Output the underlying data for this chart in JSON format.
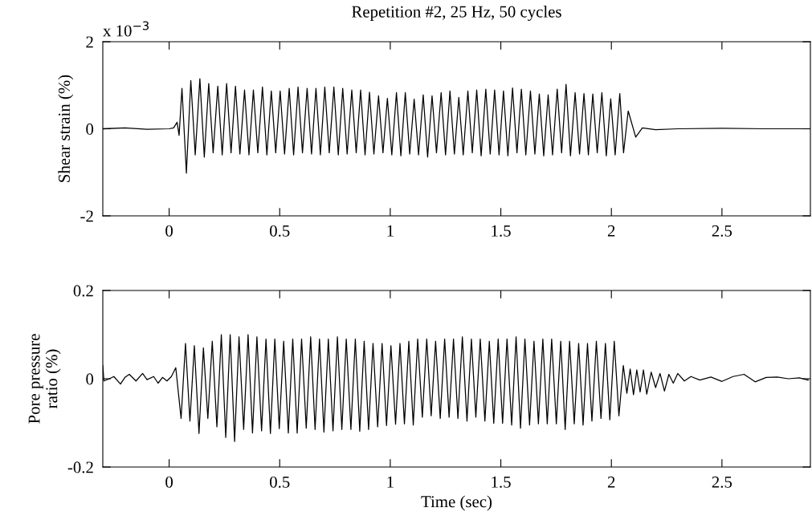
{
  "chart_data": [
    {
      "type": "line",
      "title": "Repetition #2, 25 Hz, 50 cycles",
      "ylabel": "Shear strain (%)",
      "annotations": [
        "x 10$^{−3}$"
      ],
      "grid": false,
      "marker": "none",
      "line_style": "solid",
      "xlim": [
        -0.3,
        2.9
      ],
      "xticks": [
        0,
        0.5,
        1,
        1.5,
        2,
        2.5
      ],
      "ylim": [
        -2,
        2
      ],
      "yticks": [
        -2,
        0,
        2
      ],
      "series": [
        {
          "color": "#000000",
          "x": [
            -0.3,
            -0.2,
            -0.1,
            0.0,
            0.02,
            0.036,
            0.045,
            0.058,
            0.078,
            0.098,
            0.118,
            0.139,
            0.159,
            0.179,
            0.199,
            0.22,
            0.24,
            0.26,
            0.28,
            0.3,
            0.32,
            0.341,
            0.361,
            0.381,
            0.401,
            0.422,
            0.442,
            0.462,
            0.482,
            0.502,
            0.522,
            0.543,
            0.563,
            0.583,
            0.603,
            0.624,
            0.644,
            0.664,
            0.684,
            0.704,
            0.724,
            0.745,
            0.765,
            0.785,
            0.805,
            0.826,
            0.846,
            0.866,
            0.886,
            0.906,
            0.926,
            0.947,
            0.967,
            0.987,
            1.007,
            1.028,
            1.048,
            1.068,
            1.088,
            1.108,
            1.128,
            1.149,
            1.169,
            1.189,
            1.209,
            1.23,
            1.25,
            1.27,
            1.29,
            1.31,
            1.33,
            1.351,
            1.371,
            1.391,
            1.411,
            1.432,
            1.452,
            1.472,
            1.492,
            1.512,
            1.532,
            1.553,
            1.573,
            1.593,
            1.613,
            1.634,
            1.654,
            1.674,
            1.694,
            1.714,
            1.734,
            1.755,
            1.775,
            1.795,
            1.815,
            1.836,
            1.856,
            1.876,
            1.896,
            1.916,
            1.936,
            1.957,
            1.977,
            1.997,
            2.017,
            2.038,
            2.055,
            2.076,
            2.11,
            2.14,
            2.2,
            2.3,
            2.5,
            2.7,
            2.9
          ],
          "values": [
            0,
            0.02,
            -0.01,
            0,
            0.02,
            0.15,
            -0.15,
            0.93,
            -1.02,
            1.11,
            -0.6,
            1.15,
            -0.65,
            1.04,
            -0.55,
            0.98,
            -0.6,
            1.04,
            -0.55,
            0.98,
            -0.58,
            0.89,
            -0.6,
            0.89,
            -0.55,
            0.96,
            -0.6,
            0.87,
            -0.55,
            0.87,
            -0.58,
            0.93,
            -0.6,
            0.96,
            -0.55,
            0.93,
            -0.58,
            0.93,
            -0.6,
            0.96,
            -0.55,
            0.96,
            -0.6,
            0.93,
            -0.58,
            0.89,
            -0.55,
            0.89,
            -0.6,
            0.84,
            -0.58,
            0.76,
            -0.55,
            0.7,
            -0.6,
            0.83,
            -0.62,
            0.83,
            -0.58,
            0.68,
            -0.6,
            0.78,
            -0.65,
            0.76,
            -0.55,
            0.83,
            -0.6,
            0.87,
            -0.58,
            0.72,
            -0.6,
            0.87,
            -0.55,
            0.89,
            -0.62,
            0.91,
            -0.58,
            0.89,
            -0.6,
            0.87,
            -0.62,
            0.94,
            -0.55,
            0.91,
            -0.6,
            0.87,
            -0.58,
            0.8,
            -0.62,
            0.78,
            -0.6,
            0.91,
            -0.55,
            1.02,
            -0.62,
            0.83,
            -0.58,
            0.81,
            -0.6,
            0.8,
            -0.55,
            0.83,
            -0.62,
            0.69,
            -0.6,
            0.81,
            -0.55,
            0.41,
            -0.19,
            0.02,
            -0.02,
            0,
            0.01,
            0,
            0
          ]
        }
      ]
    },
    {
      "type": "line",
      "xlabel": "Time (sec)",
      "ylabel": "Pore pressure\nratio (%)",
      "grid": false,
      "marker": "none",
      "line_style": "solid",
      "xlim": [
        -0.3,
        2.9
      ],
      "xticks": [
        0,
        0.5,
        1,
        1.5,
        2,
        2.5
      ],
      "ylim": [
        -0.2,
        0.2
      ],
      "yticks": [
        -0.2,
        0,
        0.2
      ],
      "series": [
        {
          "color": "#000000",
          "x": [
            -0.3,
            -0.295,
            -0.27,
            -0.25,
            -0.22,
            -0.2,
            -0.18,
            -0.15,
            -0.12,
            -0.1,
            -0.07,
            -0.05,
            -0.03,
            -0.01,
            0.01,
            0.03,
            0.054,
            0.074,
            0.094,
            0.114,
            0.135,
            0.155,
            0.175,
            0.195,
            0.216,
            0.236,
            0.256,
            0.276,
            0.296,
            0.316,
            0.337,
            0.357,
            0.377,
            0.397,
            0.418,
            0.438,
            0.458,
            0.478,
            0.498,
            0.518,
            0.539,
            0.559,
            0.579,
            0.599,
            0.62,
            0.64,
            0.66,
            0.68,
            0.7,
            0.72,
            0.741,
            0.761,
            0.781,
            0.801,
            0.822,
            0.842,
            0.862,
            0.882,
            0.902,
            0.922,
            0.943,
            0.963,
            0.983,
            1.003,
            1.024,
            1.044,
            1.064,
            1.084,
            1.104,
            1.124,
            1.145,
            1.165,
            1.185,
            1.205,
            1.226,
            1.246,
            1.266,
            1.286,
            1.306,
            1.326,
            1.347,
            1.367,
            1.387,
            1.407,
            1.428,
            1.448,
            1.468,
            1.488,
            1.508,
            1.528,
            1.549,
            1.569,
            1.589,
            1.609,
            1.63,
            1.65,
            1.67,
            1.69,
            1.71,
            1.73,
            1.751,
            1.771,
            1.791,
            1.811,
            1.832,
            1.852,
            1.872,
            1.892,
            1.912,
            1.932,
            1.953,
            1.973,
            1.993,
            2.013,
            2.034,
            2.054,
            2.07,
            2.085,
            2.1,
            2.115,
            2.13,
            2.145,
            2.16,
            2.18,
            2.2,
            2.22,
            2.24,
            2.26,
            2.28,
            2.3,
            2.33,
            2.36,
            2.4,
            2.45,
            2.5,
            2.55,
            2.6,
            2.65,
            2.7,
            2.75,
            2.8,
            2.85,
            2.89
          ],
          "values": [
            0.03,
            -0.005,
            0.0,
            0.005,
            -0.012,
            0.003,
            0.01,
            -0.005,
            0.012,
            -0.002,
            0.005,
            -0.01,
            0.003,
            -0.005,
            0.005,
            0.025,
            -0.09,
            0.08,
            -0.096,
            0.075,
            -0.124,
            0.07,
            -0.09,
            0.085,
            -0.109,
            0.1,
            -0.133,
            0.1,
            -0.142,
            0.095,
            -0.115,
            0.1,
            -0.123,
            0.095,
            -0.118,
            0.09,
            -0.124,
            0.09,
            -0.113,
            0.085,
            -0.123,
            0.09,
            -0.123,
            0.09,
            -0.112,
            0.095,
            -0.115,
            0.09,
            -0.121,
            0.09,
            -0.118,
            0.095,
            -0.115,
            0.09,
            -0.115,
            0.09,
            -0.119,
            0.085,
            -0.115,
            0.08,
            -0.109,
            0.08,
            -0.106,
            0.075,
            -0.103,
            0.08,
            -0.102,
            0.085,
            -0.105,
            0.09,
            -0.087,
            0.09,
            -0.084,
            0.085,
            -0.09,
            0.09,
            -0.087,
            0.09,
            -0.09,
            0.095,
            -0.096,
            0.09,
            -0.087,
            0.09,
            -0.096,
            0.085,
            -0.101,
            0.09,
            -0.101,
            0.09,
            -0.105,
            0.095,
            -0.112,
            0.09,
            -0.105,
            0.085,
            -0.102,
            0.09,
            -0.102,
            0.09,
            -0.102,
            0.085,
            -0.115,
            0.085,
            -0.102,
            0.08,
            -0.105,
            0.08,
            -0.096,
            0.085,
            -0.09,
            0.08,
            -0.093,
            0.085,
            -0.084,
            0.03,
            -0.033,
            0.022,
            -0.036,
            0.02,
            -0.03,
            0.02,
            -0.035,
            0.015,
            -0.02,
            0.012,
            -0.028,
            0.01,
            -0.01,
            0.012,
            -0.005,
            0.005,
            -0.003,
            0.004,
            -0.006,
            0.005,
            0.01,
            -0.007,
            0.003,
            0.004,
            0.0,
            0.002,
            -0.003
          ]
        }
      ]
    }
  ]
}
